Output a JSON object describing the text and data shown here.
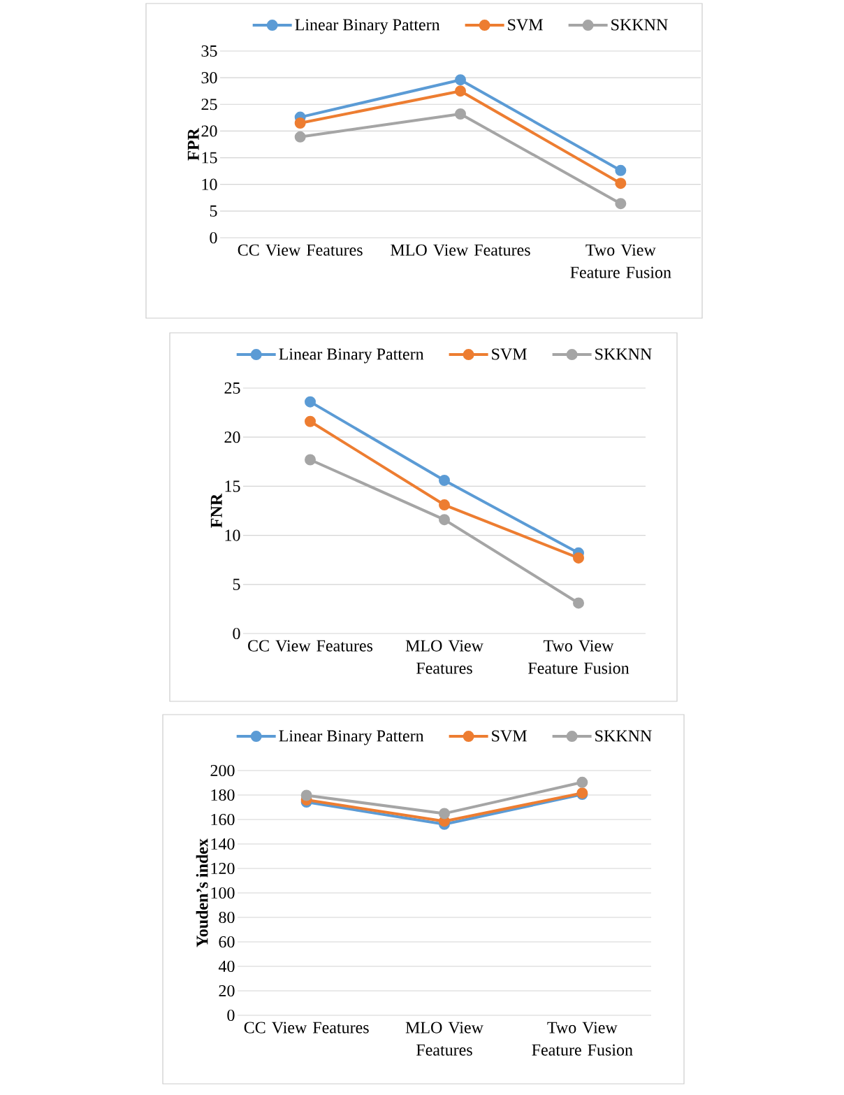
{
  "chart_data": [
    {
      "type": "line",
      "ylabel": "FPR",
      "categories": [
        "CC View Features",
        "MLO View Features",
        "Two View Feature Fusion"
      ],
      "ylim": [
        0,
        35
      ],
      "yticks": [
        0,
        5,
        10,
        15,
        20,
        25,
        30,
        35
      ],
      "grid": "y",
      "legend": "top",
      "marker": "circle",
      "series": [
        {
          "name": "Linear Binary Pattern",
          "color": "#5b9bd5",
          "values": [
            22.6,
            29.6,
            12.6
          ]
        },
        {
          "name": "SVM",
          "color": "#ed7d31",
          "values": [
            21.5,
            27.5,
            10.2
          ]
        },
        {
          "name": "SKKNN",
          "color": "#a5a5a5",
          "values": [
            18.9,
            23.2,
            6.4
          ]
        }
      ]
    },
    {
      "type": "line",
      "ylabel": "FNR",
      "categories": [
        "CC View Features",
        "MLO View Features",
        "Two View Feature Fusion"
      ],
      "ylim": [
        0,
        25
      ],
      "yticks": [
        0,
        5,
        10,
        15,
        20,
        25
      ],
      "grid": "y",
      "legend": "top",
      "marker": "circle",
      "series": [
        {
          "name": "Linear Binary Pattern",
          "color": "#5b9bd5",
          "values": [
            23.6,
            15.6,
            8.2
          ]
        },
        {
          "name": "SVM",
          "color": "#ed7d31",
          "values": [
            21.6,
            13.1,
            7.7
          ]
        },
        {
          "name": "SKKNN",
          "color": "#a5a5a5",
          "values": [
            17.7,
            11.6,
            3.1
          ]
        }
      ]
    },
    {
      "type": "line",
      "ylabel": "Youden’s index",
      "categories": [
        "CC View Features",
        "MLO View Features",
        "Two View Feature Fusion"
      ],
      "ylim": [
        0,
        200
      ],
      "yticks": [
        0,
        20,
        40,
        60,
        80,
        100,
        120,
        140,
        160,
        180,
        200
      ],
      "grid": "y",
      "legend": "top",
      "marker": "circle",
      "series": [
        {
          "name": "Linear Binary Pattern",
          "color": "#5b9bd5",
          "values": [
            174.3,
            156.1,
            180.5
          ]
        },
        {
          "name": "SVM",
          "color": "#ed7d31",
          "values": [
            176,
            158.6,
            181.6
          ]
        },
        {
          "name": "SKKNN",
          "color": "#a5a5a5",
          "values": [
            179.7,
            164.9,
            190.4
          ]
        }
      ]
    }
  ]
}
